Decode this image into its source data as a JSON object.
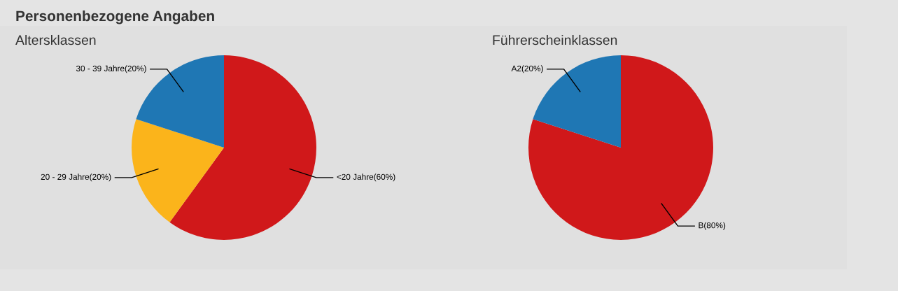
{
  "chart_data": [
    {
      "type": "pie",
      "title": "Personenbezogene Angaben",
      "subtitle": "Altersklassen",
      "categories": [
        "<20 Jahre",
        "20 - 29 Jahre",
        "30 - 39 Jahre"
      ],
      "values": [
        60,
        20,
        20
      ],
      "value_labels": [
        "(60%)",
        "(20%)",
        "(20%)"
      ],
      "colors": [
        "#d0181a",
        "#fbb41b",
        "#1f77b4"
      ],
      "legend": false
    },
    {
      "type": "pie",
      "subtitle": "Führerscheinklassen",
      "categories": [
        "B",
        "A2"
      ],
      "values": [
        80,
        20
      ],
      "value_labels": [
        "(80%)",
        "(20%)"
      ],
      "colors": [
        "#d0181a",
        "#1f77b4"
      ],
      "legend": false
    }
  ]
}
